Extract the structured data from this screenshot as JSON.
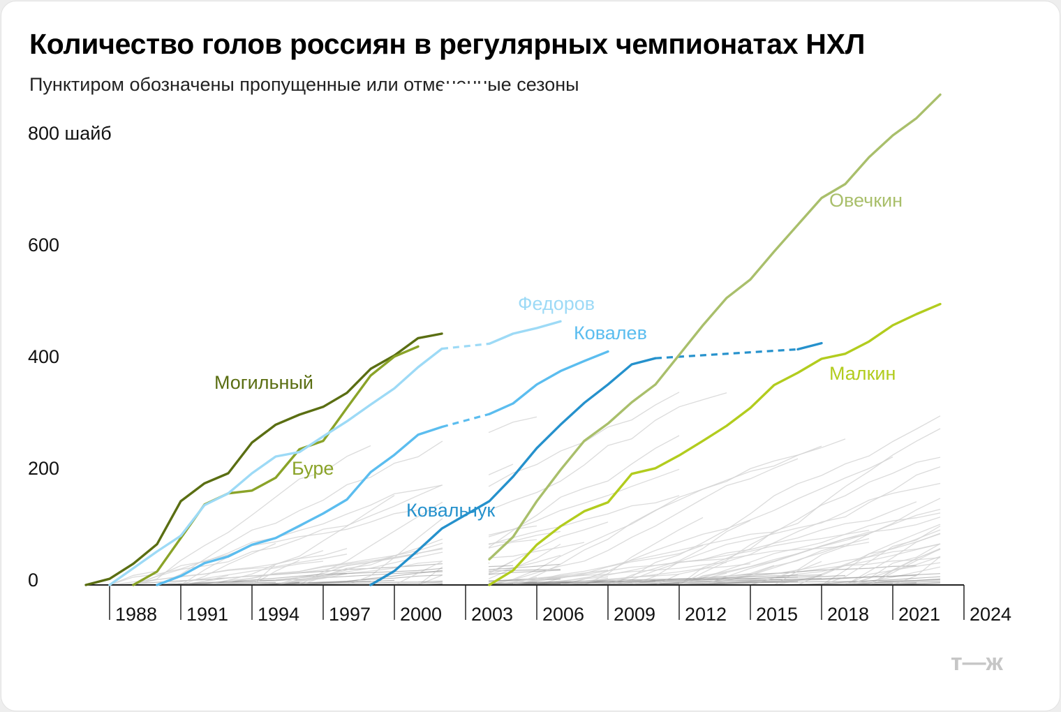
{
  "title": "Количество голов россиян в регулярных чемпионатах НХЛ",
  "subtitle": "Пунктиром обозначены пропущенные или отмененные сезоны",
  "logo_text": "т—ж",
  "chart_data": {
    "type": "line",
    "y_axis": {
      "ylim": [
        0,
        900
      ],
      "ticks": [
        0,
        200,
        400,
        600,
        800
      ],
      "tick_labels": [
        "0",
        "200",
        "400",
        "600",
        "800 шайб"
      ]
    },
    "x_axis": {
      "xlim": [
        1987,
        2024
      ],
      "ticks": [
        1988,
        1991,
        1994,
        1997,
        2000,
        2003,
        2006,
        2009,
        2012,
        2015,
        2018,
        2021,
        2024
      ],
      "tick_labels": [
        "1988",
        "1991",
        "1994",
        "1997",
        "2000",
        "2003",
        "2006",
        "2009",
        "2012",
        "2015",
        "2018",
        "2021",
        "2024"
      ]
    },
    "lockout_gaps": [
      [
        2002,
        2004
      ]
    ],
    "series": [
      {
        "name": "Могильный",
        "color": "#5a6e12",
        "points": [
          [
            1987,
            0
          ],
          [
            1988,
            11
          ],
          [
            1989,
            38
          ],
          [
            1990,
            73
          ],
          [
            1991,
            150
          ],
          [
            1992,
            182
          ],
          [
            1993,
            200
          ],
          [
            1994,
            255
          ],
          [
            1995,
            287
          ],
          [
            1996,
            305
          ],
          [
            1997,
            319
          ],
          [
            1998,
            344
          ],
          [
            1999,
            387
          ],
          [
            2000,
            411
          ],
          [
            2001,
            442
          ],
          [
            2002,
            450
          ]
        ],
        "dashed": []
      },
      {
        "name": "Буре",
        "color": "#8aa328",
        "points": [
          [
            1989,
            0
          ],
          [
            1990,
            24
          ],
          [
            1991,
            84
          ],
          [
            1992,
            144
          ],
          [
            1993,
            164
          ],
          [
            1994,
            169
          ],
          [
            1995,
            192
          ],
          [
            1996,
            243
          ],
          [
            1997,
            258
          ],
          [
            1998,
            317
          ],
          [
            1999,
            375
          ],
          [
            2000,
            409
          ],
          [
            2001,
            427
          ]
        ],
        "dashed": []
      },
      {
        "name": "Федоров",
        "color": "#9ddaf6",
        "points": [
          [
            1988,
            0
          ],
          [
            1989,
            30
          ],
          [
            1990,
            60
          ],
          [
            1991,
            88
          ],
          [
            1992,
            143
          ],
          [
            1993,
            164
          ],
          [
            1994,
            200
          ],
          [
            1995,
            230
          ],
          [
            1996,
            238
          ],
          [
            1997,
            266
          ],
          [
            1998,
            293
          ],
          [
            1999,
            323
          ],
          [
            2000,
            352
          ],
          [
            2001,
            390
          ],
          [
            2002,
            423
          ],
          [
            2004,
            432
          ],
          [
            2005,
            450
          ],
          [
            2006,
            460
          ],
          [
            2007,
            472
          ]
        ],
        "dashed": [
          [
            2002,
            2004
          ]
        ]
      },
      {
        "name": "Ковалев",
        "color": "#5bbdef",
        "points": [
          [
            1990,
            0
          ],
          [
            1991,
            16
          ],
          [
            1992,
            39
          ],
          [
            1993,
            51
          ],
          [
            1994,
            72
          ],
          [
            1995,
            84
          ],
          [
            1996,
            106
          ],
          [
            1997,
            128
          ],
          [
            1998,
            153
          ],
          [
            1999,
            202
          ],
          [
            2000,
            233
          ],
          [
            2001,
            269
          ],
          [
            2002,
            283
          ],
          [
            2004,
            306
          ],
          [
            2005,
            325
          ],
          [
            2006,
            359
          ],
          [
            2007,
            383
          ],
          [
            2008,
            401
          ],
          [
            2009,
            418
          ]
        ],
        "dashed": [
          [
            2002,
            2004
          ]
        ]
      },
      {
        "name": "Ковальчук",
        "color": "#2591cc",
        "points": [
          [
            1999,
            0
          ],
          [
            2000,
            25
          ],
          [
            2001,
            62
          ],
          [
            2002,
            101
          ],
          [
            2004,
            150
          ],
          [
            2005,
            194
          ],
          [
            2006,
            245
          ],
          [
            2007,
            287
          ],
          [
            2008,
            326
          ],
          [
            2009,
            359
          ],
          [
            2010,
            395
          ],
          [
            2011,
            406
          ],
          [
            2017,
            422
          ],
          [
            2018,
            433
          ]
        ],
        "dashed": [
          [
            2011,
            2017
          ]
        ]
      },
      {
        "name": "Овечкин",
        "color": "#a9bf6b",
        "points": [
          [
            2004,
            46
          ],
          [
            2005,
            86
          ],
          [
            2006,
            150
          ],
          [
            2007,
            206
          ],
          [
            2008,
            258
          ],
          [
            2009,
            289
          ],
          [
            2010,
            327
          ],
          [
            2011,
            359
          ],
          [
            2012,
            412
          ],
          [
            2013,
            465
          ],
          [
            2014,
            514
          ],
          [
            2015,
            547
          ],
          [
            2016,
            597
          ],
          [
            2017,
            645
          ],
          [
            2018,
            693
          ],
          [
            2019,
            718
          ],
          [
            2020,
            766
          ],
          [
            2021,
            805
          ],
          [
            2022,
            836
          ],
          [
            2023,
            878
          ]
        ],
        "dashed": []
      },
      {
        "name": "Малкин",
        "color": "#b2cc1e",
        "points": [
          [
            2004,
            0
          ],
          [
            2005,
            26
          ],
          [
            2006,
            72
          ],
          [
            2007,
            105
          ],
          [
            2008,
            132
          ],
          [
            2009,
            148
          ],
          [
            2010,
            199
          ],
          [
            2011,
            209
          ],
          [
            2012,
            232
          ],
          [
            2013,
            258
          ],
          [
            2014,
            285
          ],
          [
            2015,
            317
          ],
          [
            2016,
            358
          ],
          [
            2017,
            380
          ],
          [
            2018,
            405
          ],
          [
            2019,
            414
          ],
          [
            2020,
            436
          ],
          [
            2021,
            465
          ],
          [
            2022,
            485
          ],
          [
            2023,
            503
          ]
        ],
        "dashed": []
      }
    ]
  }
}
